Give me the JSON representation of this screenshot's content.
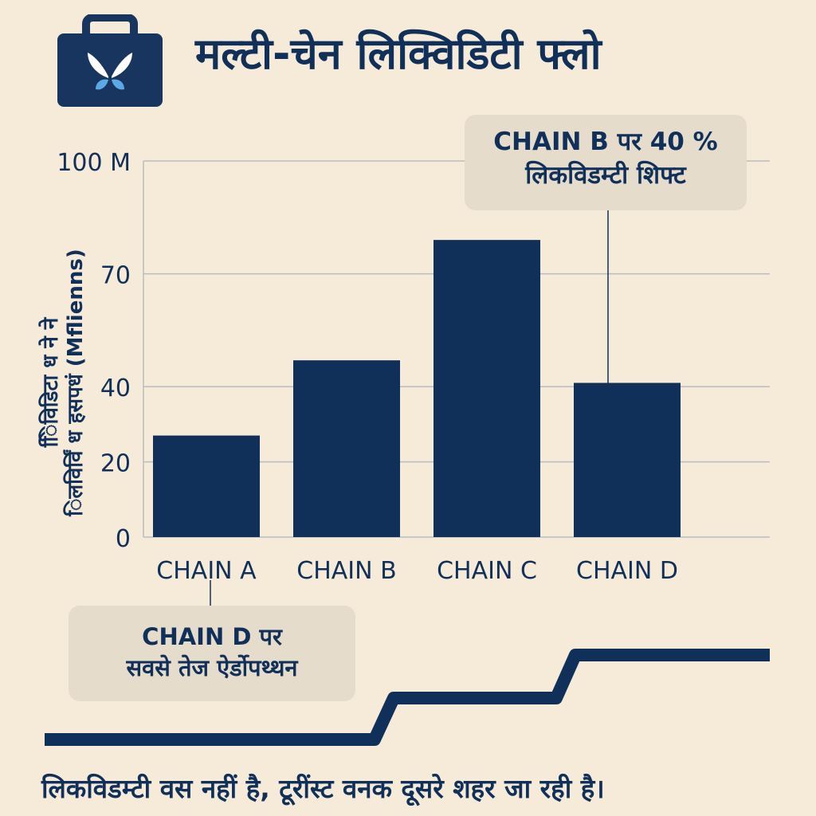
{
  "title": "मल्टी-चेन लिक्विडिटी फ्लो",
  "logo": {
    "icon": "briefcase-butterfly-icon",
    "colors": {
      "case": "#17355f",
      "wing_light": "#ffffff",
      "wing_blue": "#5aa8e6"
    }
  },
  "callouts": {
    "chain_b": {
      "line1": "CHAIN B पर 40 %",
      "line2": "लिकविडम्टी शिफ्ट"
    },
    "chain_d": {
      "line1": "CHAIN D पर",
      "line2": "सवसे तेज ऐर्डोपथ्थन"
    }
  },
  "footer": "लिकविडम्टी वस नहीं है, टूरींस्ट वनक दूसरे शहर जा रही है।",
  "colors": {
    "background": "#f6ead8",
    "bar": "#10305a",
    "grid": "#b9bcc4",
    "callout_bg": "#e6dccb"
  },
  "chart_data": {
    "type": "bar",
    "categories": [
      "CHAIN A",
      "CHAIN B",
      "CHAIN C",
      "CHAIN D"
    ],
    "values": [
      27,
      47,
      79,
      41
    ],
    "ylabel": "ििविडिटा ध ने ने\nिलविर्विं ध हसपधं (Mflienns)",
    "ylim": [
      0,
      100
    ],
    "yticks": [
      {
        "value": 0,
        "label": "0"
      },
      {
        "value": 20,
        "label": "20"
      },
      {
        "value": 40,
        "label": "40"
      },
      {
        "value": 70,
        "label": "70"
      },
      {
        "value": 100,
        "label": "100 M"
      }
    ],
    "grid": true,
    "step_line": [
      {
        "x": 0,
        "y": 0
      },
      {
        "x": 1,
        "y": 1
      },
      {
        "x": 2,
        "y": 2
      }
    ]
  }
}
